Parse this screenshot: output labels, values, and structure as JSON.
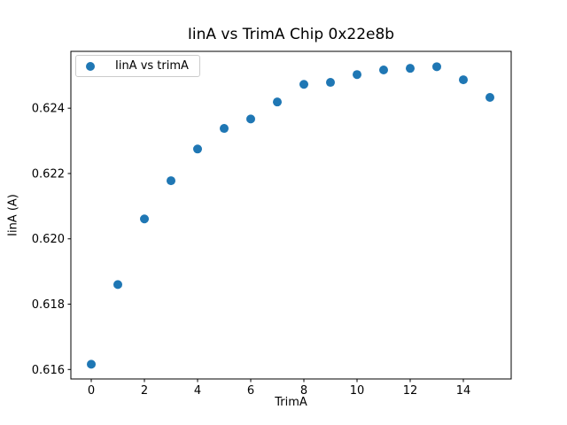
{
  "figure": {
    "background": "#ffffff",
    "text_color": "#000000",
    "frame_color": "#000000"
  },
  "chart_data": {
    "type": "scatter",
    "title": "IinA vs TrimA Chip 0x22e8b",
    "xlabel": "TrimA",
    "ylabel": "IinA (A)",
    "xlim": [
      -0.767,
      15.8
    ],
    "ylim": [
      0.61571,
      0.62574
    ],
    "x_ticks": [
      0,
      2,
      4,
      6,
      8,
      10,
      12,
      14
    ],
    "x_tick_labels": [
      "0",
      "2",
      "4",
      "6",
      "8",
      "10",
      "12",
      "14"
    ],
    "y_ticks": [
      0.616,
      0.618,
      0.62,
      0.622,
      0.624
    ],
    "y_tick_labels": [
      "0.616",
      "0.618",
      "0.620",
      "0.622",
      "0.624"
    ],
    "grid": false,
    "legend_position": "upper left",
    "marker_color": "#1f77b4",
    "series": [
      {
        "name": "IinA vs trimA",
        "x": [
          0,
          1,
          2,
          3,
          4,
          5,
          6,
          7,
          8,
          9,
          10,
          11,
          12,
          13,
          14,
          15
        ],
        "y": [
          0.61616,
          0.6186,
          0.62061,
          0.62178,
          0.62275,
          0.62338,
          0.62367,
          0.62419,
          0.62473,
          0.62479,
          0.62503,
          0.62517,
          0.62522,
          0.62527,
          0.62487,
          0.62433
        ]
      }
    ]
  }
}
